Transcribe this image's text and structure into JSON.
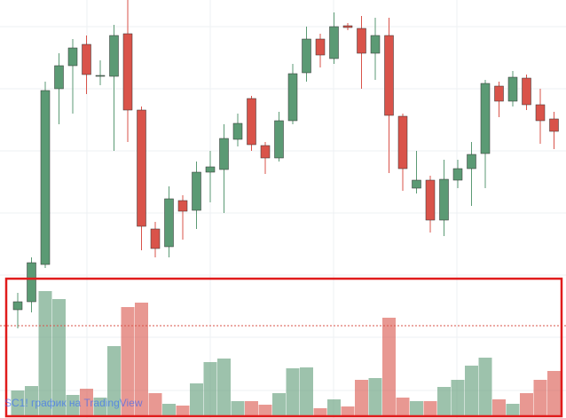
{
  "chart_data": {
    "type": "candlestick",
    "watermark": "SC1! график на TradingView",
    "ylim": [
      0,
      471
    ],
    "volume_lim": [
      0,
      155
    ],
    "up_color": "#5b9a74",
    "down_color": "#d9534a",
    "open": [
      122,
      131,
      173,
      371,
      397,
      421,
      385,
      385,
      433,
      347,
      213,
      193,
      245,
      234,
      277,
      280,
      314,
      360,
      307,
      293,
      335,
      389,
      427,
      405,
      442,
      439,
      411,
      431,
      340,
      259,
      268,
      223,
      268,
      281,
      298,
      374,
      357,
      383,
      353,
      337
    ],
    "high": [
      141,
      181,
      379,
      411,
      427,
      431,
      403,
      443,
      471,
      351,
      221,
      261,
      251,
      289,
      301,
      331,
      343,
      363,
      311,
      345,
      399,
      441,
      433,
      457,
      445,
      453,
      451,
      451,
      343,
      301,
      273,
      291,
      291,
      311,
      381,
      379,
      391,
      387,
      371,
      345
    ],
    "low": [
      101,
      119,
      169,
      331,
      343,
      365,
      375,
      301,
      311,
      189,
      181,
      181,
      201,
      213,
      243,
      231,
      306,
      301,
      275,
      289,
      331,
      379,
      395,
      399,
      437,
      371,
      381,
      276,
      256,
      253,
      209,
      205,
      259,
      239,
      259,
      339,
      351,
      347,
      309,
      303
    ],
    "close": [
      131,
      175,
      369,
      397,
      417,
      387,
      386,
      431,
      347,
      216,
      191,
      247,
      233,
      277,
      283,
      315,
      332,
      308,
      293,
      335,
      388,
      427,
      409,
      441,
      440,
      411,
      431,
      341,
      281,
      268,
      223,
      269,
      281,
      297,
      377,
      357,
      384,
      353,
      335,
      323
    ],
    "volume": [
      28,
      33,
      140,
      131,
      23,
      30,
      20,
      78,
      122,
      127,
      25,
      13,
      11,
      36,
      60,
      64,
      16,
      16,
      12,
      25,
      53,
      54,
      8,
      18,
      10,
      40,
      42,
      110,
      20,
      16,
      16,
      32,
      40,
      56,
      65,
      18,
      13,
      25,
      40,
      50
    ]
  }
}
